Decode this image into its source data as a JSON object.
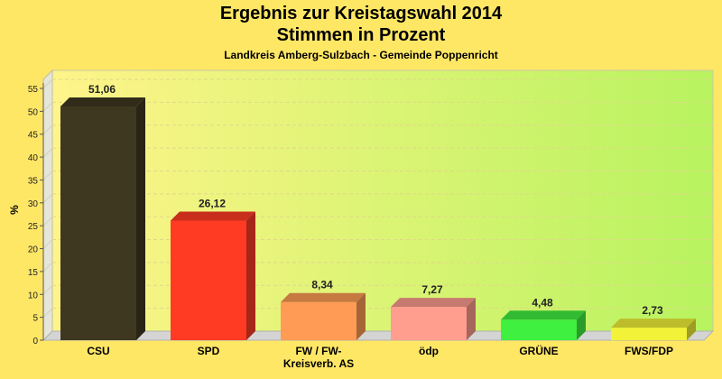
{
  "chart_data": {
    "type": "bar",
    "title": "Ergebnis zur Kreistagswahl 2014",
    "subtitle": "Stimmen in Prozent",
    "subtitle2": "Landkreis Amberg-Sulzbach - Gemeinde Poppenricht",
    "xlabel": "",
    "ylabel": "%",
    "ylim": [
      0,
      55
    ],
    "yticks": [
      0,
      5,
      10,
      15,
      20,
      25,
      30,
      35,
      40,
      45,
      50,
      55
    ],
    "grid": true,
    "categories": [
      "CSU",
      "SPD",
      "FW / FW-Kreisverb. AS",
      "ödp",
      "GRÜNE",
      "FWS/FDP"
    ],
    "category_lines": [
      [
        "CSU"
      ],
      [
        "SPD"
      ],
      [
        "FW / FW-",
        "Kreisverb. AS"
      ],
      [
        "ödp"
      ],
      [
        "GRÜNE"
      ],
      [
        "FWS/FDP"
      ]
    ],
    "values": [
      51.06,
      26.12,
      8.34,
      7.27,
      4.48,
      2.73
    ],
    "value_labels": [
      "51,06",
      "26,12",
      "8,34",
      "7,27",
      "4,48",
      "2,73"
    ],
    "colors": [
      "#3f3820",
      "#ff3b24",
      "#ff9b55",
      "#ff9d8f",
      "#40f040",
      "#f2f238"
    ]
  }
}
